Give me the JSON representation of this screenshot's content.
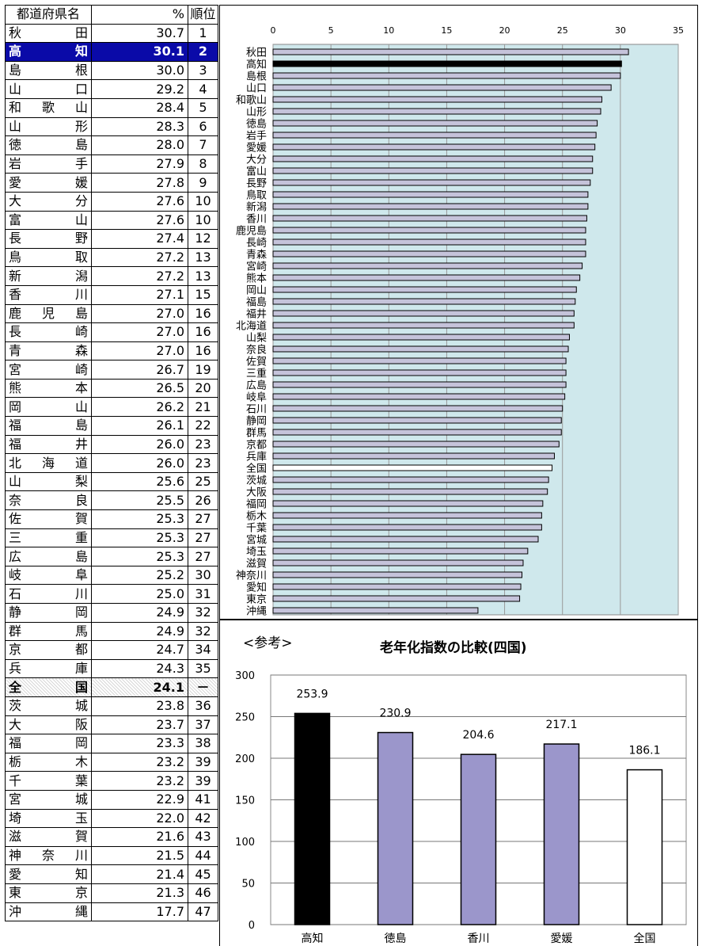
{
  "table": {
    "headers": {
      "name": "都道府県名",
      "pct": "%",
      "rank": "順位"
    },
    "rows": [
      {
        "name": "秋田",
        "value": "30.7",
        "rank": "1"
      },
      {
        "name": "高知",
        "value": "30.1",
        "rank": "2",
        "highlight": true
      },
      {
        "name": "島根",
        "value": "30.0",
        "rank": "3"
      },
      {
        "name": "山口",
        "value": "29.2",
        "rank": "4"
      },
      {
        "name": "和歌山",
        "value": "28.4",
        "rank": "5"
      },
      {
        "name": "山形",
        "value": "28.3",
        "rank": "6"
      },
      {
        "name": "徳島",
        "value": "28.0",
        "rank": "7"
      },
      {
        "name": "岩手",
        "value": "27.9",
        "rank": "8"
      },
      {
        "name": "愛媛",
        "value": "27.8",
        "rank": "9"
      },
      {
        "name": "大分",
        "value": "27.6",
        "rank": "10"
      },
      {
        "name": "富山",
        "value": "27.6",
        "rank": "10"
      },
      {
        "name": "長野",
        "value": "27.4",
        "rank": "12"
      },
      {
        "name": "鳥取",
        "value": "27.2",
        "rank": "13"
      },
      {
        "name": "新潟",
        "value": "27.2",
        "rank": "13"
      },
      {
        "name": "香川",
        "value": "27.1",
        "rank": "15"
      },
      {
        "name": "鹿児島",
        "value": "27.0",
        "rank": "16"
      },
      {
        "name": "長崎",
        "value": "27.0",
        "rank": "16"
      },
      {
        "name": "青森",
        "value": "27.0",
        "rank": "16"
      },
      {
        "name": "宮崎",
        "value": "26.7",
        "rank": "19"
      },
      {
        "name": "熊本",
        "value": "26.5",
        "rank": "20"
      },
      {
        "name": "岡山",
        "value": "26.2",
        "rank": "21"
      },
      {
        "name": "福島",
        "value": "26.1",
        "rank": "22"
      },
      {
        "name": "福井",
        "value": "26.0",
        "rank": "23"
      },
      {
        "name": "北海道",
        "value": "26.0",
        "rank": "23"
      },
      {
        "name": "山梨",
        "value": "25.6",
        "rank": "25"
      },
      {
        "name": "奈良",
        "value": "25.5",
        "rank": "26"
      },
      {
        "name": "佐賀",
        "value": "25.3",
        "rank": "27"
      },
      {
        "name": "三重",
        "value": "25.3",
        "rank": "27"
      },
      {
        "name": "広島",
        "value": "25.3",
        "rank": "27"
      },
      {
        "name": "岐阜",
        "value": "25.2",
        "rank": "30"
      },
      {
        "name": "石川",
        "value": "25.0",
        "rank": "31"
      },
      {
        "name": "静岡",
        "value": "24.9",
        "rank": "32"
      },
      {
        "name": "群馬",
        "value": "24.9",
        "rank": "32"
      },
      {
        "name": "京都",
        "value": "24.7",
        "rank": "34"
      },
      {
        "name": "兵庫",
        "value": "24.3",
        "rank": "35"
      },
      {
        "name": "全国",
        "value": "24.1",
        "rank": "－",
        "national": true
      },
      {
        "name": "茨城",
        "value": "23.8",
        "rank": "36"
      },
      {
        "name": "大阪",
        "value": "23.7",
        "rank": "37"
      },
      {
        "name": "福岡",
        "value": "23.3",
        "rank": "38"
      },
      {
        "name": "栃木",
        "value": "23.2",
        "rank": "39"
      },
      {
        "name": "千葉",
        "value": "23.2",
        "rank": "39"
      },
      {
        "name": "宮城",
        "value": "22.9",
        "rank": "41"
      },
      {
        "name": "埼玉",
        "value": "22.0",
        "rank": "42"
      },
      {
        "name": "滋賀",
        "value": "21.6",
        "rank": "43"
      },
      {
        "name": "神奈川",
        "value": "21.5",
        "rank": "44"
      },
      {
        "name": "愛知",
        "value": "21.4",
        "rank": "45"
      },
      {
        "name": "東京",
        "value": "21.3",
        "rank": "46"
      },
      {
        "name": "沖縄",
        "value": "17.7",
        "rank": "47"
      }
    ]
  },
  "colors": {
    "highlight_row": "#0a0aa8",
    "plot_bg": "#cfe8ec",
    "bar_fill": "#c5c3da",
    "kochi_bar": "#000000",
    "purple_bar": "#9b96cb",
    "national_bar": "#ffffff"
  },
  "ref_label": "<参考>",
  "chart_data": [
    {
      "type": "bar",
      "orientation": "horizontal",
      "xlim": [
        0,
        35
      ],
      "x_ticks": [
        "0",
        "5",
        "10",
        "15",
        "20",
        "25",
        "30",
        "35"
      ],
      "grid": true,
      "categories": [
        "秋田",
        "高知",
        "島根",
        "山口",
        "和歌山",
        "山形",
        "徳島",
        "岩手",
        "愛媛",
        "大分",
        "富山",
        "長野",
        "鳥取",
        "新潟",
        "香川",
        "鹿児島",
        "長崎",
        "青森",
        "宮崎",
        "熊本",
        "岡山",
        "福島",
        "福井",
        "北海道",
        "山梨",
        "奈良",
        "佐賀",
        "三重",
        "広島",
        "岐阜",
        "石川",
        "静岡",
        "群馬",
        "京都",
        "兵庫",
        "全国",
        "茨城",
        "大阪",
        "福岡",
        "栃木",
        "千葉",
        "宮城",
        "埼玉",
        "滋賀",
        "神奈川",
        "愛知",
        "東京",
        "沖縄"
      ],
      "values": [
        30.7,
        30.1,
        30.0,
        29.2,
        28.4,
        28.3,
        28.0,
        27.9,
        27.8,
        27.6,
        27.6,
        27.4,
        27.2,
        27.2,
        27.1,
        27.0,
        27.0,
        27.0,
        26.7,
        26.5,
        26.2,
        26.1,
        26.0,
        26.0,
        25.6,
        25.5,
        25.3,
        25.3,
        25.3,
        25.2,
        25.0,
        24.9,
        24.9,
        24.7,
        24.3,
        24.1,
        23.8,
        23.7,
        23.3,
        23.2,
        23.2,
        22.9,
        22.0,
        21.6,
        21.5,
        21.4,
        21.3,
        17.7
      ]
    },
    {
      "type": "bar",
      "title": "老年化指数の比較(四国)",
      "ylim": [
        0,
        300
      ],
      "y_ticks": [
        "0",
        "50",
        "100",
        "150",
        "200",
        "250",
        "300"
      ],
      "grid": true,
      "categories": [
        "高知",
        "徳島",
        "香川",
        "愛媛",
        "全国"
      ],
      "values": [
        253.9,
        230.9,
        204.6,
        217.1,
        186.1
      ],
      "value_labels": [
        "253.9",
        "230.9",
        "204.6",
        "217.1",
        "186.1"
      ]
    }
  ]
}
